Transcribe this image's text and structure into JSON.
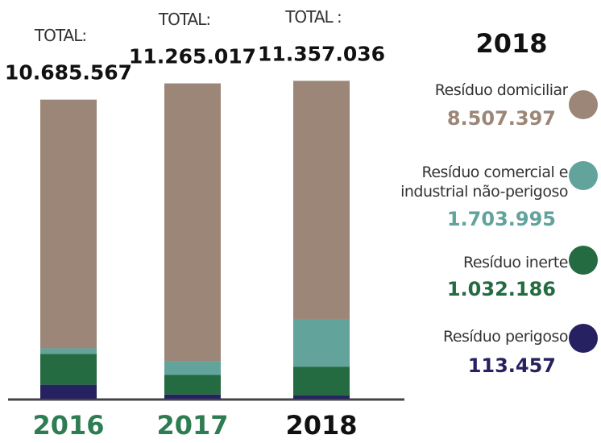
{
  "chart_data": {
    "type": "stacked_bar",
    "categories": [
      "2016",
      "2017",
      "2018"
    ],
    "category_colors": [
      "#2e7d52",
      "#2e7d52",
      "#111111"
    ],
    "total_prefix": [
      "TOTAL:",
      "TOTAL:",
      "TOTAL :"
    ],
    "totals": [
      10685567,
      11265017,
      11357036
    ],
    "total_labels": [
      "10.685.567",
      "11.265.017",
      "11.357.036"
    ],
    "legend_title": "2018",
    "ylim": [
      0,
      12000000
    ],
    "series": [
      {
        "name": "Resíduo perigoso",
        "color": "#262261",
        "values": [
          500000,
          150000,
          113457
        ],
        "value_labels": [
          null,
          null,
          "113.457"
        ]
      },
      {
        "name": "Resíduo inerte",
        "color": "#246b41",
        "values": [
          1100000,
          700000,
          1032186
        ],
        "value_labels": [
          null,
          null,
          "1.032.186"
        ]
      },
      {
        "name": "Resíduo comercial e industrial não-perigoso",
        "color": "#62a39b",
        "values": [
          200000,
          500000,
          1703995
        ],
        "value_labels": [
          null,
          null,
          "1.703.995"
        ]
      },
      {
        "name": "Resíduo domiciliar",
        "color": "#9c8677",
        "values": [
          8885567,
          9915017,
          8507397
        ],
        "value_labels": [
          null,
          null,
          "8.507.397"
        ]
      }
    ]
  }
}
